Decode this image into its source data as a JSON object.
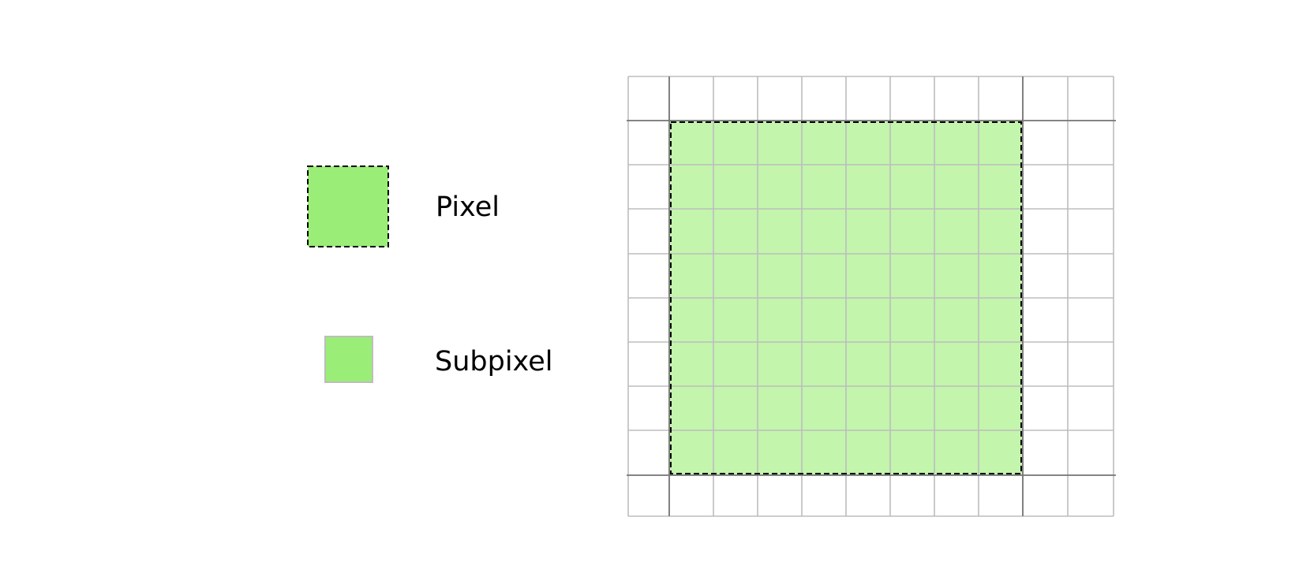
{
  "legend": {
    "pixel_label": "Pixel",
    "subpixel_label": "Subpixel"
  },
  "grid": {
    "columns": 11,
    "rows": 10,
    "pixel_block": {
      "start_col": 1,
      "end_col": 8,
      "start_row": 1,
      "end_row": 8
    }
  },
  "colors": {
    "pixel_fill": "#9aed76",
    "subpixel_fill": "#9aed76",
    "highlight_fill": "#c3f5ad",
    "grid_line": "#bdbdbd",
    "major_line": "#777777",
    "dashed_border": "#000000"
  }
}
